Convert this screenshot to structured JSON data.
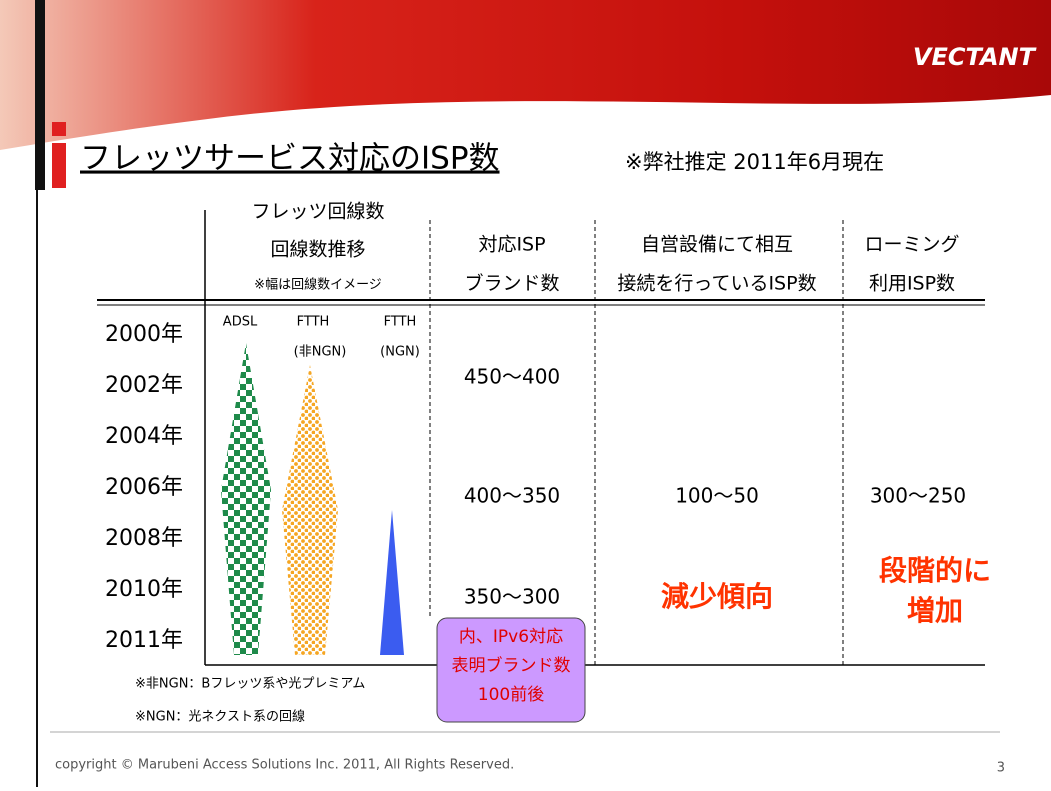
{
  "header": {
    "logo": "VECTANT",
    "title": "フレッツサービス対応のISP数",
    "note": "※弊社推定 2011年6月現在"
  },
  "table": {
    "headers": [
      [
        "フレッツ回線数",
        "回線数推移",
        "※幅は回線数イメージ"
      ],
      [
        "対応ISP",
        "ブランド数"
      ],
      [
        "自営設備にて相互",
        "接続を行っているISP数"
      ],
      [
        "ローミング",
        "利用ISP数"
      ]
    ],
    "years": [
      "2000年",
      "2002年",
      "2004年",
      "2006年",
      "2008年",
      "2010年",
      "2011年"
    ],
    "line_types": [
      [
        "ADSL"
      ],
      [
        "FTTH",
        "(非NGN)"
      ],
      [
        "FTTH",
        "(NGN)"
      ]
    ],
    "isp_brands": [
      "450〜400",
      "400〜350",
      "350〜300"
    ],
    "interconnect": "100〜50",
    "roaming": "300〜250",
    "trend_interconnect": "減少傾向",
    "trend_roaming": [
      "段階的に",
      "増加"
    ],
    "callout": [
      "内、IPv6対応",
      "表明ブランド数",
      "100前後"
    ]
  },
  "footnotes": [
    "※非NGN：Bフレッツ系や光プレミアム",
    "※NGN：光ネクスト系の回線"
  ],
  "footer": {
    "copyright": "copyright © Marubeni Access Solutions Inc. 2011, All Rights Reserved.",
    "page": "3"
  }
}
